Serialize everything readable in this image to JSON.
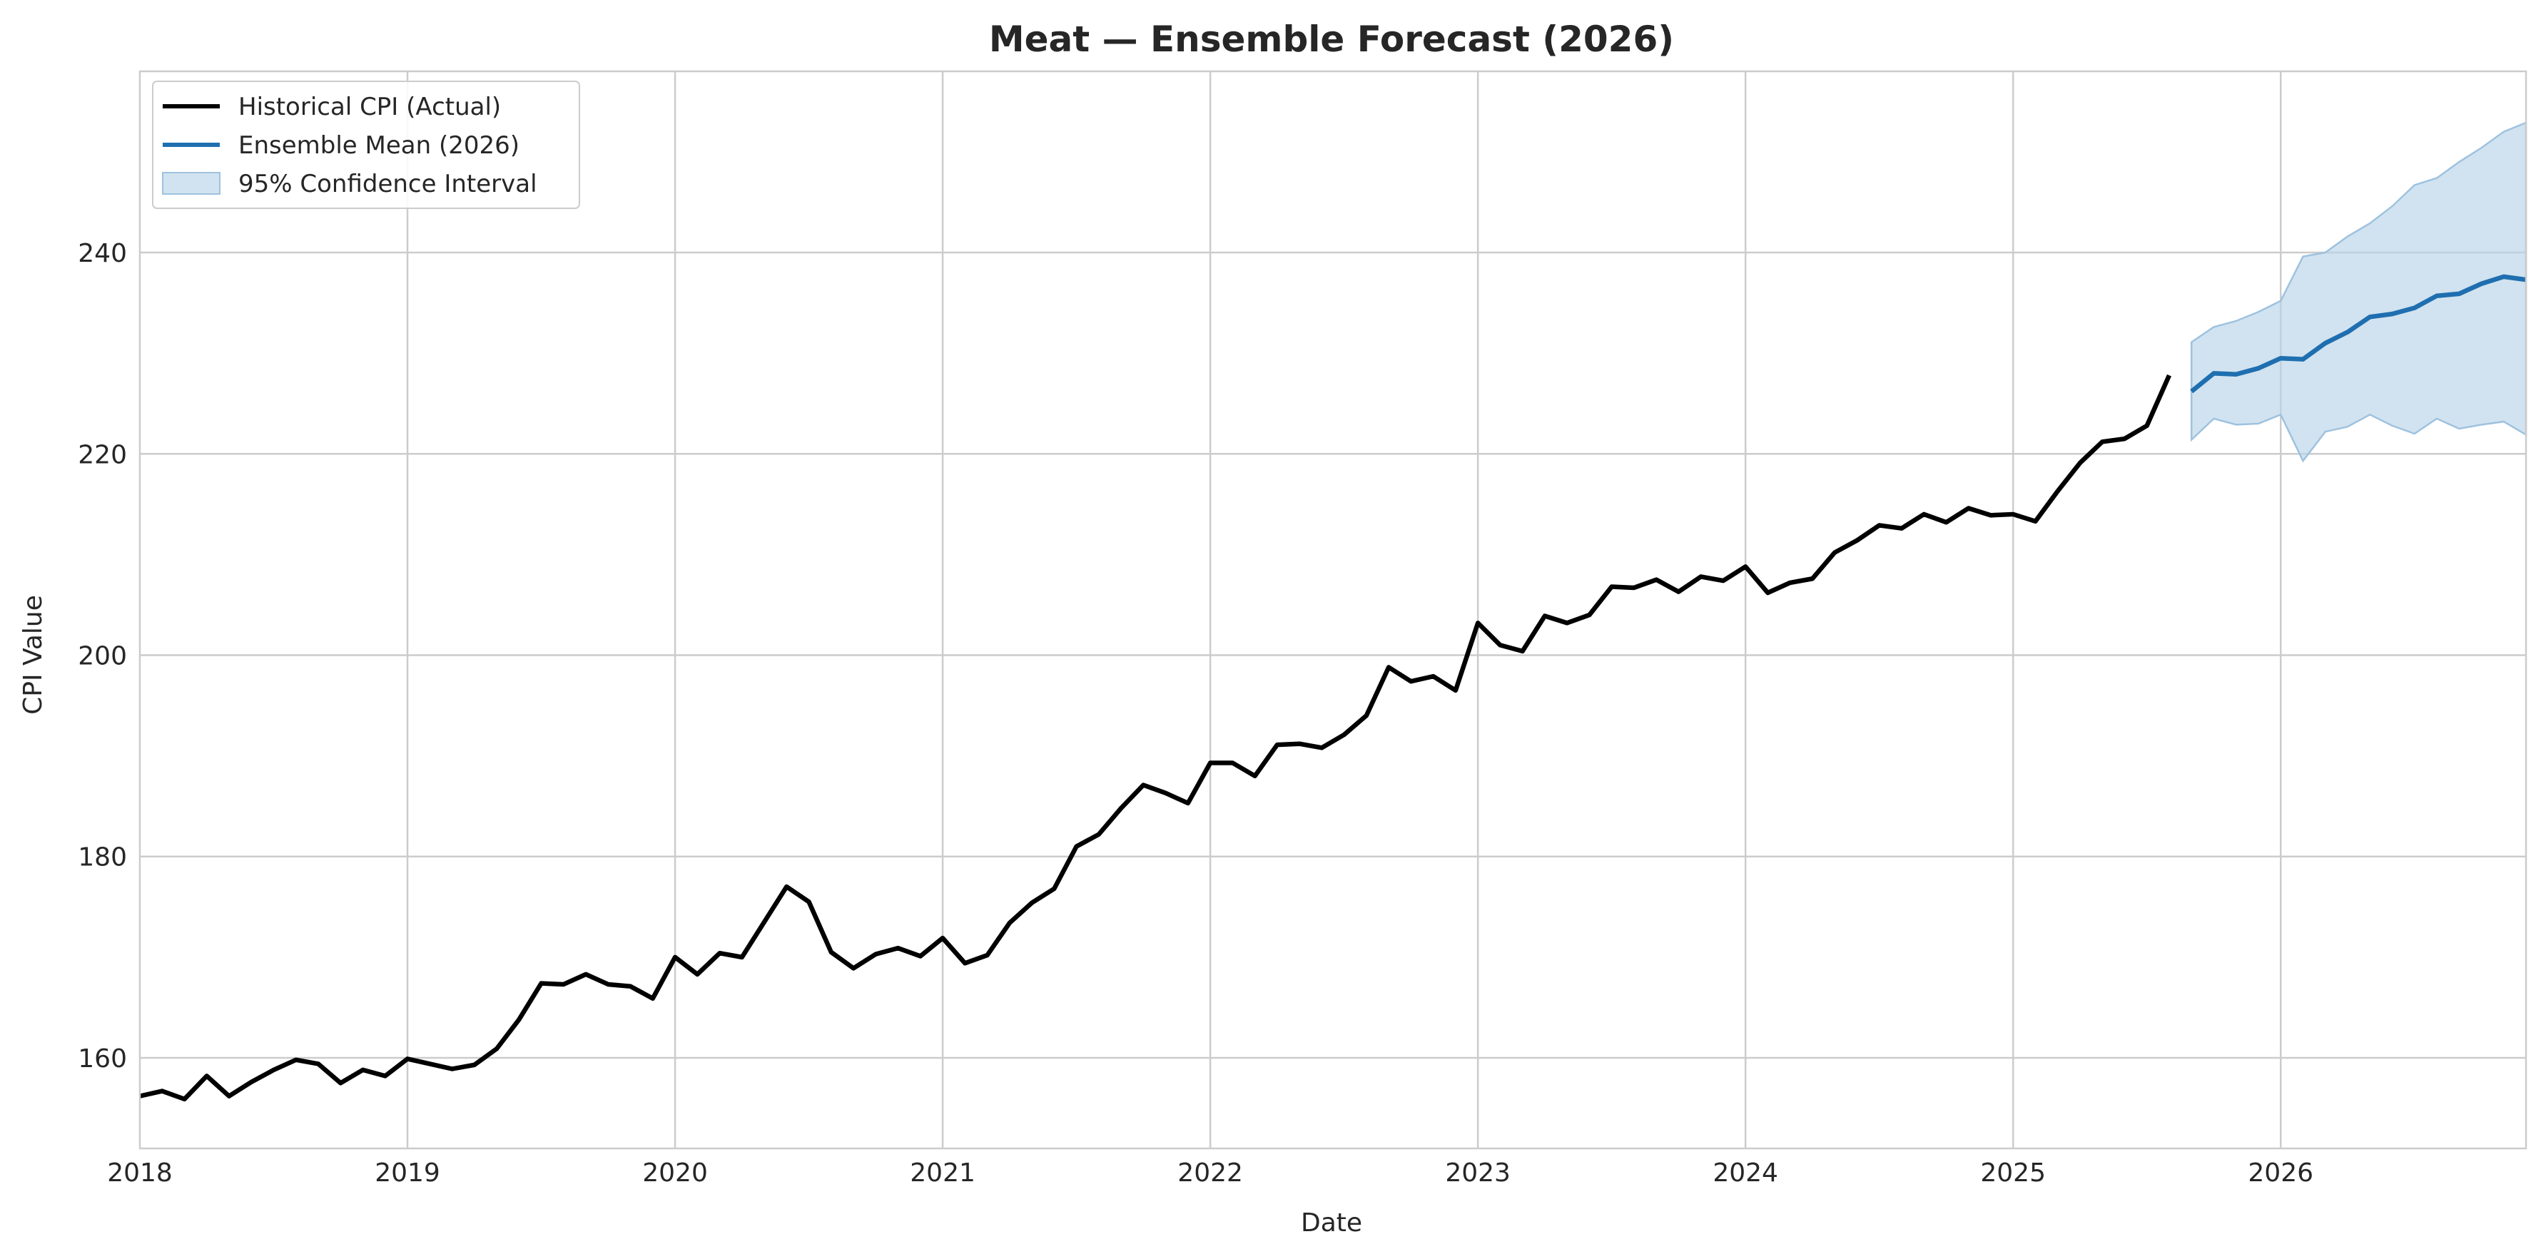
{
  "chart_data": {
    "type": "line",
    "title": "Meat — Ensemble Forecast (2026)",
    "xlabel": "Date",
    "ylabel": "CPI Value",
    "xlim": [
      "2018-01",
      "2026-12"
    ],
    "ylim": [
      151,
      258
    ],
    "x_ticks": [
      "2018",
      "2019",
      "2020",
      "2021",
      "2022",
      "2023",
      "2024",
      "2025",
      "2026"
    ],
    "y_ticks": [
      160,
      180,
      200,
      220,
      240
    ],
    "grid": true,
    "legend_position": "top-left",
    "colors": {
      "historical": "#000000",
      "ensemble": "#1f6fb0",
      "ci_fill": "#b9d4e8",
      "ci_edge": "#9ec2df",
      "grid": "#cccccc",
      "axes": "#cccccc"
    },
    "series": [
      {
        "name": "Historical CPI (Actual)",
        "kind": "line",
        "x": [
          "2018-01",
          "2018-02",
          "2018-03",
          "2018-04",
          "2018-05",
          "2018-06",
          "2018-07",
          "2018-08",
          "2018-09",
          "2018-10",
          "2018-11",
          "2018-12",
          "2019-01",
          "2019-02",
          "2019-03",
          "2019-04",
          "2019-05",
          "2019-06",
          "2019-07",
          "2019-08",
          "2019-09",
          "2019-10",
          "2019-11",
          "2019-12",
          "2020-01",
          "2020-02",
          "2020-03",
          "2020-04",
          "2020-05",
          "2020-06",
          "2020-07",
          "2020-08",
          "2020-09",
          "2020-10",
          "2020-11",
          "2020-12",
          "2021-01",
          "2021-02",
          "2021-03",
          "2021-04",
          "2021-05",
          "2021-06",
          "2021-07",
          "2021-08",
          "2021-09",
          "2021-10",
          "2021-11",
          "2021-12",
          "2022-01",
          "2022-02",
          "2022-03",
          "2022-04",
          "2022-05",
          "2022-06",
          "2022-07",
          "2022-08",
          "2022-09",
          "2022-10",
          "2022-11",
          "2022-12",
          "2023-01",
          "2023-02",
          "2023-03",
          "2023-04",
          "2023-05",
          "2023-06",
          "2023-07",
          "2023-08",
          "2023-09",
          "2023-10",
          "2023-11",
          "2023-12",
          "2024-01",
          "2024-02",
          "2024-03",
          "2024-04",
          "2024-05",
          "2024-06",
          "2024-07",
          "2024-08",
          "2024-09",
          "2024-10",
          "2024-11",
          "2024-12",
          "2025-01",
          "2025-02",
          "2025-03",
          "2025-04",
          "2025-05",
          "2025-06",
          "2025-07",
          "2025-08"
        ],
        "values": [
          156.2,
          156.7,
          155.9,
          158.2,
          156.2,
          157.6,
          158.8,
          159.8,
          159.4,
          157.5,
          158.8,
          158.2,
          159.9,
          159.4,
          158.9,
          159.3,
          160.9,
          163.8,
          167.4,
          167.3,
          168.3,
          167.3,
          167.1,
          165.9,
          170.0,
          168.3,
          170.4,
          170.0,
          173.5,
          177.0,
          175.5,
          170.5,
          168.9,
          170.3,
          170.9,
          170.1,
          171.9,
          169.4,
          170.2,
          173.4,
          175.4,
          176.8,
          181.0,
          182.2,
          184.8,
          187.1,
          186.3,
          185.3,
          189.3,
          189.3,
          188.0,
          191.1,
          191.2,
          190.8,
          192.1,
          194.0,
          198.8,
          197.4,
          197.9,
          196.5,
          203.2,
          201.0,
          200.4,
          203.9,
          203.2,
          204.0,
          206.8,
          206.7,
          207.5,
          206.3,
          207.8,
          207.4,
          208.8,
          206.2,
          207.2,
          207.6,
          210.2,
          211.4,
          212.9,
          212.6,
          214.0,
          213.2,
          214.6,
          213.9,
          214.0,
          213.3,
          216.3,
          219.1,
          221.2,
          221.5,
          222.8,
          227.8
        ]
      },
      {
        "name": "Ensemble Mean (2026)",
        "kind": "line",
        "x": [
          "2025-09",
          "2025-10",
          "2025-11",
          "2025-12",
          "2026-01",
          "2026-02",
          "2026-03",
          "2026-04",
          "2026-05",
          "2026-06",
          "2026-07",
          "2026-08",
          "2026-09",
          "2026-10",
          "2026-11",
          "2026-12"
        ],
        "values": [
          226.2,
          228.0,
          227.9,
          228.5,
          229.5,
          229.4,
          231.0,
          232.1,
          233.6,
          233.9,
          234.5,
          235.7,
          235.9,
          236.9,
          237.6,
          237.3
        ]
      },
      {
        "name": "95% Confidence Interval",
        "kind": "band",
        "x": [
          "2025-09",
          "2025-10",
          "2025-11",
          "2025-12",
          "2026-01",
          "2026-02",
          "2026-03",
          "2026-04",
          "2026-05",
          "2026-06",
          "2026-07",
          "2026-08",
          "2026-09",
          "2026-10",
          "2026-11",
          "2026-12"
        ],
        "lower": [
          221.4,
          223.5,
          222.9,
          223.0,
          223.9,
          219.3,
          222.2,
          222.7,
          223.9,
          222.8,
          222.0,
          223.5,
          222.5,
          222.9,
          223.2,
          221.9
        ],
        "upper": [
          231.1,
          232.6,
          233.2,
          234.1,
          235.2,
          239.6,
          240.0,
          241.6,
          242.9,
          244.6,
          246.7,
          247.4,
          249.0,
          250.4,
          252.0,
          252.9
        ]
      }
    ]
  }
}
